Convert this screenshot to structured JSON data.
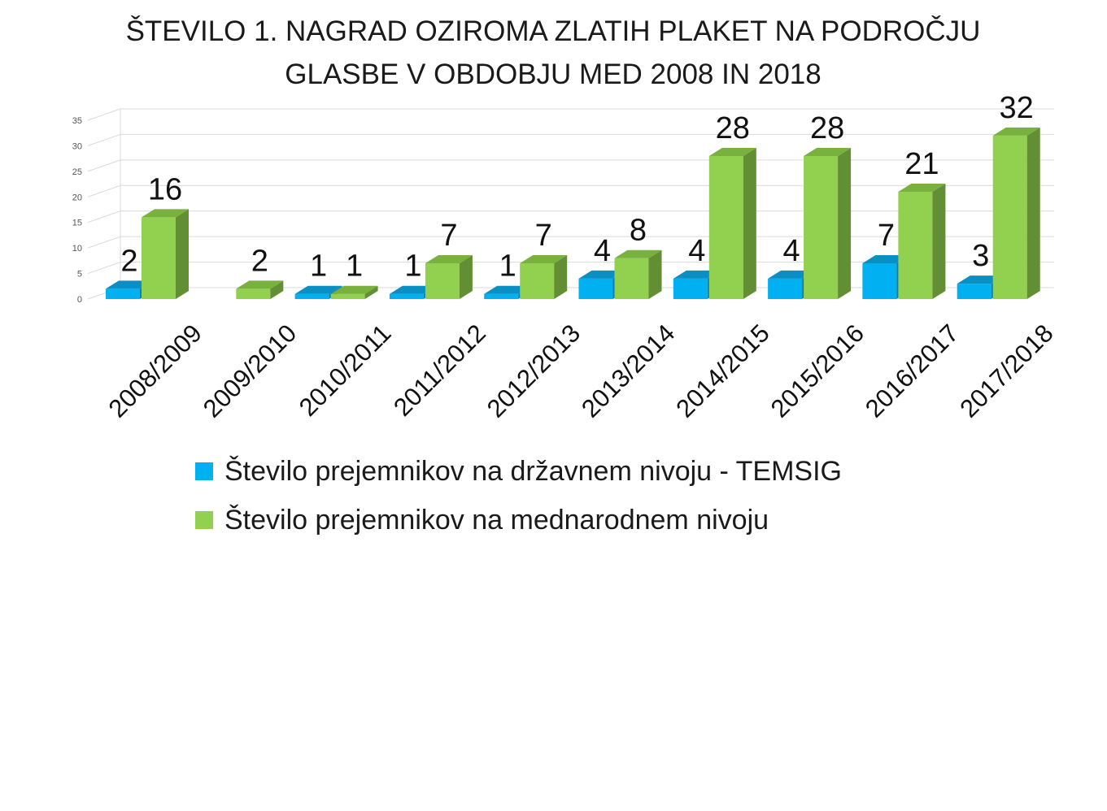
{
  "chart_data": {
    "type": "bar",
    "title_lines": [
      "ŠTEVILO 1. NAGRAD OZIROMA ZLATIH PLAKET NA PODROČJU",
      "GLASBE V OBDOBJU MED 2008 IN 2018"
    ],
    "categories": [
      "2008/2009",
      "2009/2010",
      "2010/2011",
      "2011/2012",
      "2012/2013",
      "2013/2014",
      "2014/2015",
      "2015/2016",
      "2016/2017",
      "2017/2018"
    ],
    "series": [
      {
        "name": "Število prejemnikov na državnem nivoju - TEMSIG",
        "values": [
          2,
          null,
          1,
          1,
          1,
          4,
          4,
          4,
          7,
          3
        ],
        "color": "#00b0f0",
        "color_top": "#0a8fc4",
        "color_side": "#0780b0"
      },
      {
        "name": "Število prejemnikov na mednarodnem nivoju",
        "values": [
          16,
          2,
          1,
          7,
          7,
          8,
          28,
          28,
          21,
          32
        ],
        "color": "#92d050",
        "color_top": "#79b13f",
        "color_side": "#628f33"
      }
    ],
    "ylim": [
      0,
      35
    ],
    "yticks": [
      0,
      5,
      10,
      15,
      20,
      25,
      30,
      35
    ],
    "grid": true,
    "legend_position": "bottom",
    "data_labels": true
  }
}
